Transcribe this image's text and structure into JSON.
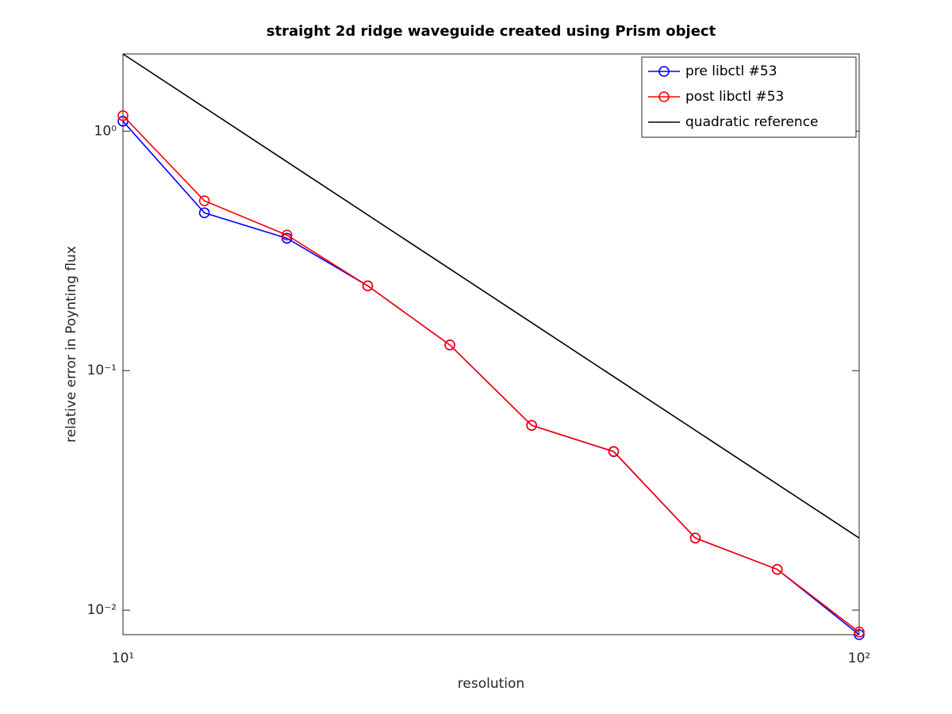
{
  "chart_data": {
    "type": "line",
    "title": "straight 2d ridge waveguide created using Prism object",
    "xlabel": "resolution",
    "ylabel": "relative error in Poynting flux",
    "xscale": "log",
    "yscale": "log",
    "xlim": [
      10,
      100
    ],
    "ylim": [
      0.0079,
      2.1
    ],
    "xticks": [
      {
        "value": 10,
        "label": "10¹"
      },
      {
        "value": 100,
        "label": "10²"
      }
    ],
    "yticks": [
      {
        "value": 0.01,
        "label": "10⁻²"
      },
      {
        "value": 0.1,
        "label": "10⁻¹"
      },
      {
        "value": 1,
        "label": "10⁰"
      }
    ],
    "legend": "upper right",
    "series": [
      {
        "name": "pre libctl #53",
        "color": "#0000ff",
        "marker": "circle",
        "x": [
          10,
          12.9,
          16.7,
          21.5,
          27.8,
          35.9,
          46.4,
          59.9,
          77.4,
          100
        ],
        "values": [
          1.1,
          0.456,
          0.357,
          0.226,
          0.128,
          0.0591,
          0.0459,
          0.02,
          0.0148,
          0.0079
        ]
      },
      {
        "name": "post libctl #53",
        "color": "#ff0000",
        "marker": "circle",
        "x": [
          10,
          12.9,
          16.7,
          21.5,
          27.8,
          35.9,
          46.4,
          59.9,
          77.4,
          100
        ],
        "values": [
          1.16,
          0.512,
          0.368,
          0.226,
          0.128,
          0.0591,
          0.046,
          0.02,
          0.0148,
          0.0081
        ]
      },
      {
        "name": "quadratic reference",
        "color": "#000000",
        "marker": "none",
        "x": [
          10,
          100
        ],
        "values": [
          2.1,
          0.02
        ]
      }
    ]
  }
}
